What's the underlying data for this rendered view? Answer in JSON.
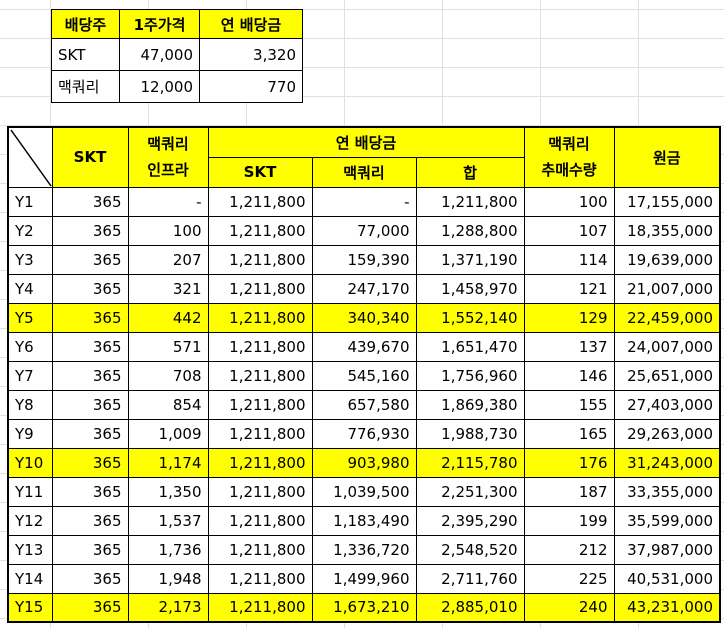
{
  "price_table": {
    "headers": [
      "배당주",
      "1주가격",
      "연 배당금"
    ],
    "rows": [
      [
        "SKT",
        "47,000",
        "3,320"
      ],
      [
        "맥쿼리",
        "12,000",
        "770"
      ]
    ]
  },
  "main_table": {
    "header": {
      "skt": "SKT",
      "mac_infra_line1": "맥쿼리",
      "mac_infra_line2": "인프라",
      "annual_dividend": "연 배당금",
      "sub_skt": "SKT",
      "sub_mac": "맥쿼리",
      "sub_sum": "합",
      "mac_buy_line1": "맥쿼리",
      "mac_buy_line2": "추매수량",
      "principal": "원금"
    },
    "rows": [
      {
        "year": "Y1",
        "skt": "365",
        "mac": "-",
        "div_skt": "1,211,800",
        "div_mac": "-",
        "sum": "1,211,800",
        "buy": "100",
        "principal": "17,155,000",
        "highlight": false
      },
      {
        "year": "Y2",
        "skt": "365",
        "mac": "100",
        "div_skt": "1,211,800",
        "div_mac": "77,000",
        "sum": "1,288,800",
        "buy": "107",
        "principal": "18,355,000",
        "highlight": false
      },
      {
        "year": "Y3",
        "skt": "365",
        "mac": "207",
        "div_skt": "1,211,800",
        "div_mac": "159,390",
        "sum": "1,371,190",
        "buy": "114",
        "principal": "19,639,000",
        "highlight": false
      },
      {
        "year": "Y4",
        "skt": "365",
        "mac": "321",
        "div_skt": "1,211,800",
        "div_mac": "247,170",
        "sum": "1,458,970",
        "buy": "121",
        "principal": "21,007,000",
        "highlight": false
      },
      {
        "year": "Y5",
        "skt": "365",
        "mac": "442",
        "div_skt": "1,211,800",
        "div_mac": "340,340",
        "sum": "1,552,140",
        "buy": "129",
        "principal": "22,459,000",
        "highlight": true
      },
      {
        "year": "Y6",
        "skt": "365",
        "mac": "571",
        "div_skt": "1,211,800",
        "div_mac": "439,670",
        "sum": "1,651,470",
        "buy": "137",
        "principal": "24,007,000",
        "highlight": false
      },
      {
        "year": "Y7",
        "skt": "365",
        "mac": "708",
        "div_skt": "1,211,800",
        "div_mac": "545,160",
        "sum": "1,756,960",
        "buy": "146",
        "principal": "25,651,000",
        "highlight": false
      },
      {
        "year": "Y8",
        "skt": "365",
        "mac": "854",
        "div_skt": "1,211,800",
        "div_mac": "657,580",
        "sum": "1,869,380",
        "buy": "155",
        "principal": "27,403,000",
        "highlight": false
      },
      {
        "year": "Y9",
        "skt": "365",
        "mac": "1,009",
        "div_skt": "1,211,800",
        "div_mac": "776,930",
        "sum": "1,988,730",
        "buy": "165",
        "principal": "29,263,000",
        "highlight": false
      },
      {
        "year": "Y10",
        "skt": "365",
        "mac": "1,174",
        "div_skt": "1,211,800",
        "div_mac": "903,980",
        "sum": "2,115,780",
        "buy": "176",
        "principal": "31,243,000",
        "highlight": true
      },
      {
        "year": "Y11",
        "skt": "365",
        "mac": "1,350",
        "div_skt": "1,211,800",
        "div_mac": "1,039,500",
        "sum": "2,251,300",
        "buy": "187",
        "principal": "33,355,000",
        "highlight": false
      },
      {
        "year": "Y12",
        "skt": "365",
        "mac": "1,537",
        "div_skt": "1,211,800",
        "div_mac": "1,183,490",
        "sum": "2,395,290",
        "buy": "199",
        "principal": "35,599,000",
        "highlight": false
      },
      {
        "year": "Y13",
        "skt": "365",
        "mac": "1,736",
        "div_skt": "1,211,800",
        "div_mac": "1,336,720",
        "sum": "2,548,520",
        "buy": "212",
        "principal": "37,987,000",
        "highlight": false
      },
      {
        "year": "Y14",
        "skt": "365",
        "mac": "1,948",
        "div_skt": "1,211,800",
        "div_mac": "1,499,960",
        "sum": "2,711,760",
        "buy": "225",
        "principal": "40,531,000",
        "highlight": false
      },
      {
        "year": "Y15",
        "skt": "365",
        "mac": "2,173",
        "div_skt": "1,211,800",
        "div_mac": "1,673,210",
        "sum": "2,885,010",
        "buy": "240",
        "principal": "43,231,000",
        "highlight": true
      }
    ]
  },
  "colors": {
    "highlight": "#ffff00",
    "border": "#000000",
    "gridline": "#d9d9d9"
  }
}
